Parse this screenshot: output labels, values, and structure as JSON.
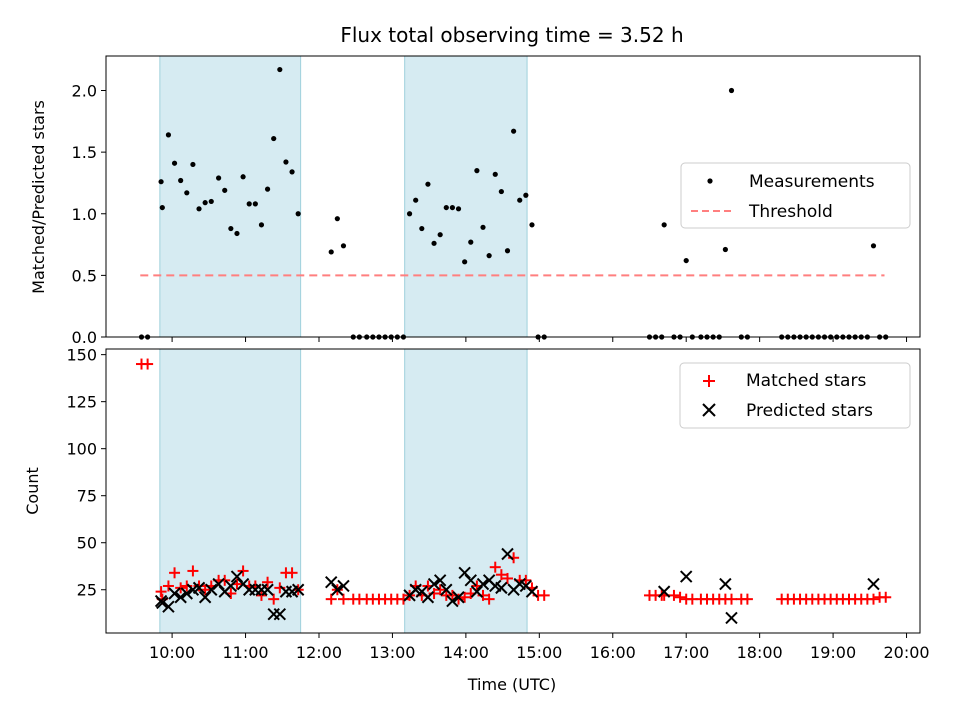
{
  "title": "Flux total observing time = 3.52 h",
  "chart_data": [
    {
      "type": "scatter",
      "ylabel": "Matched/Predicted stars",
      "ylim": [
        0,
        2.28
      ],
      "yticks": [
        0.0,
        0.5,
        1.0,
        1.5,
        2.0
      ],
      "ytick_labels": [
        "0.0",
        "0.5",
        "1.0",
        "1.5",
        "2.0"
      ],
      "legend": {
        "position": "center-right",
        "entries": [
          "Measurements",
          "Threshold"
        ]
      },
      "threshold": {
        "value": 0.5,
        "xrange": [
          "09:34",
          "19:42"
        ]
      },
      "series": [
        {
          "name": "Measurements",
          "points": [
            [
              "09:35",
              0
            ],
            [
              "09:40",
              0
            ],
            [
              "09:51",
              1.26
            ],
            [
              "09:52",
              1.05
            ],
            [
              "09:57",
              1.64
            ],
            [
              "10:02",
              1.41
            ],
            [
              "10:07",
              1.27
            ],
            [
              "10:12",
              1.17
            ],
            [
              "10:17",
              1.4
            ],
            [
              "10:22",
              1.04
            ],
            [
              "10:27",
              1.09
            ],
            [
              "10:32",
              1.1
            ],
            [
              "10:38",
              1.29
            ],
            [
              "10:43",
              1.19
            ],
            [
              "10:48",
              0.88
            ],
            [
              "10:53",
              0.84
            ],
            [
              "10:58",
              1.3
            ],
            [
              "11:03",
              1.08
            ],
            [
              "11:08",
              1.08
            ],
            [
              "11:13",
              0.91
            ],
            [
              "11:18",
              1.2
            ],
            [
              "11:23",
              1.61
            ],
            [
              "11:28",
              2.17
            ],
            [
              "11:33",
              1.42
            ],
            [
              "11:38",
              1.34
            ],
            [
              "11:43",
              1.0
            ],
            [
              "12:10",
              0.69
            ],
            [
              "12:15",
              0.96
            ],
            [
              "12:20",
              0.74
            ],
            [
              "12:28",
              0
            ],
            [
              "12:33",
              0
            ],
            [
              "12:39",
              0
            ],
            [
              "12:44",
              0
            ],
            [
              "12:49",
              0
            ],
            [
              "12:54",
              0
            ],
            [
              "12:59",
              0
            ],
            [
              "13:04",
              0
            ],
            [
              "13:09",
              0
            ],
            [
              "13:14",
              1.0
            ],
            [
              "13:19",
              1.11
            ],
            [
              "13:24",
              0.88
            ],
            [
              "13:29",
              1.24
            ],
            [
              "13:34",
              0.76
            ],
            [
              "13:39",
              0.83
            ],
            [
              "13:44",
              1.05
            ],
            [
              "13:49",
              1.05
            ],
            [
              "13:54",
              1.04
            ],
            [
              "13:59",
              0.61
            ],
            [
              "14:04",
              0.77
            ],
            [
              "14:09",
              1.35
            ],
            [
              "14:14",
              0.89
            ],
            [
              "14:19",
              0.66
            ],
            [
              "14:24",
              1.32
            ],
            [
              "14:29",
              1.18
            ],
            [
              "14:34",
              0.7
            ],
            [
              "14:39",
              1.67
            ],
            [
              "14:44",
              1.11
            ],
            [
              "14:49",
              1.15
            ],
            [
              "14:54",
              0.91
            ],
            [
              "14:59",
              0
            ],
            [
              "15:04",
              0
            ],
            [
              "16:30",
              0
            ],
            [
              "16:35",
              0
            ],
            [
              "16:40",
              0
            ],
            [
              "16:42",
              0.91
            ],
            [
              "16:50",
              0
            ],
            [
              "16:55",
              0
            ],
            [
              "17:00",
              0.62
            ],
            [
              "17:05",
              0
            ],
            [
              "17:12",
              0
            ],
            [
              "17:17",
              0
            ],
            [
              "17:22",
              0
            ],
            [
              "17:27",
              0
            ],
            [
              "17:32",
              0.71
            ],
            [
              "17:37",
              2.0
            ],
            [
              "17:45",
              0
            ],
            [
              "17:50",
              0
            ],
            [
              "18:18",
              0
            ],
            [
              "18:23",
              0
            ],
            [
              "18:28",
              0
            ],
            [
              "18:33",
              0
            ],
            [
              "18:38",
              0
            ],
            [
              "18:43",
              0
            ],
            [
              "18:48",
              0
            ],
            [
              "18:53",
              0
            ],
            [
              "18:58",
              0
            ],
            [
              "19:03",
              0
            ],
            [
              "19:08",
              0
            ],
            [
              "19:13",
              0
            ],
            [
              "19:18",
              0
            ],
            [
              "19:23",
              0
            ],
            [
              "19:28",
              0
            ],
            [
              "19:33",
              0.74
            ],
            [
              "19:38",
              0
            ],
            [
              "19:43",
              0
            ]
          ]
        }
      ]
    },
    {
      "type": "scatter",
      "xlabel": "Time (UTC)",
      "ylabel": "Count",
      "ylim": [
        2,
        153
      ],
      "yticks": [
        25,
        50,
        75,
        100,
        125,
        150
      ],
      "ytick_labels": [
        "25",
        "50",
        "75",
        "100",
        "125",
        "150"
      ],
      "xlim": [
        "09:06",
        "20:11"
      ],
      "xticks": [
        "10:00",
        "11:00",
        "12:00",
        "13:00",
        "14:00",
        "15:00",
        "16:00",
        "17:00",
        "18:00",
        "19:00",
        "20:00"
      ],
      "legend": {
        "position": "top-right",
        "entries": [
          "Matched stars",
          "Predicted stars"
        ]
      },
      "series": [
        {
          "name": "Matched stars",
          "color": "#ff0000",
          "points": [
            [
              "09:35",
              145
            ],
            [
              "09:40",
              145
            ],
            [
              "09:51",
              24
            ],
            [
              "09:52",
              20
            ],
            [
              "09:57",
              27
            ],
            [
              "10:02",
              34
            ],
            [
              "10:07",
              26
            ],
            [
              "10:12",
              27
            ],
            [
              "10:17",
              35
            ],
            [
              "10:22",
              27
            ],
            [
              "10:27",
              25
            ],
            [
              "10:32",
              27
            ],
            [
              "10:38",
              30
            ],
            [
              "10:43",
              30
            ],
            [
              "10:48",
              23
            ],
            [
              "10:53",
              28
            ],
            [
              "10:58",
              35
            ],
            [
              "11:03",
              27
            ],
            [
              "11:08",
              27
            ],
            [
              "11:13",
              22
            ],
            [
              "11:18",
              29
            ],
            [
              "11:23",
              20
            ],
            [
              "11:28",
              26
            ],
            [
              "11:33",
              34
            ],
            [
              "11:38",
              34
            ],
            [
              "11:43",
              25
            ],
            [
              "12:10",
              20
            ],
            [
              "12:15",
              25
            ],
            [
              "12:20",
              20
            ],
            [
              "12:28",
              20
            ],
            [
              "12:33",
              20
            ],
            [
              "12:39",
              20
            ],
            [
              "12:44",
              20
            ],
            [
              "12:49",
              20
            ],
            [
              "12:54",
              20
            ],
            [
              "12:59",
              20
            ],
            [
              "13:04",
              20
            ],
            [
              "13:09",
              20
            ],
            [
              "13:14",
              22
            ],
            [
              "13:19",
              27
            ],
            [
              "13:24",
              22
            ],
            [
              "13:29",
              27
            ],
            [
              "13:34",
              23
            ],
            [
              "13:39",
              25
            ],
            [
              "13:44",
              22
            ],
            [
              "13:49",
              22
            ],
            [
              "13:54",
              20
            ],
            [
              "13:59",
              21
            ],
            [
              "14:04",
              23
            ],
            [
              "14:09",
              27
            ],
            [
              "14:14",
              22
            ],
            [
              "14:19",
              20
            ],
            [
              "14:24",
              37
            ],
            [
              "14:29",
              33
            ],
            [
              "14:34",
              31
            ],
            [
              "14:39",
              42
            ],
            [
              "14:44",
              30
            ],
            [
              "14:49",
              30
            ],
            [
              "14:54",
              26
            ],
            [
              "14:59",
              22
            ],
            [
              "15:04",
              22
            ],
            [
              "16:30",
              22
            ],
            [
              "16:35",
              22
            ],
            [
              "16:40",
              22
            ],
            [
              "16:42",
              22
            ],
            [
              "16:50",
              22
            ],
            [
              "16:55",
              21
            ],
            [
              "17:00",
              20
            ],
            [
              "17:05",
              20
            ],
            [
              "17:12",
              20
            ],
            [
              "17:17",
              20
            ],
            [
              "17:22",
              20
            ],
            [
              "17:27",
              20
            ],
            [
              "17:32",
              20
            ],
            [
              "17:37",
              20
            ],
            [
              "17:45",
              20
            ],
            [
              "17:50",
              20
            ],
            [
              "18:18",
              20
            ],
            [
              "18:23",
              20
            ],
            [
              "18:28",
              20
            ],
            [
              "18:33",
              20
            ],
            [
              "18:38",
              20
            ],
            [
              "18:43",
              20
            ],
            [
              "18:48",
              20
            ],
            [
              "18:53",
              20
            ],
            [
              "18:58",
              20
            ],
            [
              "19:03",
              20
            ],
            [
              "19:08",
              20
            ],
            [
              "19:13",
              20
            ],
            [
              "19:18",
              20
            ],
            [
              "19:23",
              20
            ],
            [
              "19:28",
              20
            ],
            [
              "19:33",
              20
            ],
            [
              "19:38",
              21
            ],
            [
              "19:43",
              21
            ]
          ]
        },
        {
          "name": "Predicted stars",
          "color": "#000000",
          "points": [
            [
              "09:51",
              19
            ],
            [
              "09:52",
              18
            ],
            [
              "09:57",
              16
            ],
            [
              "10:02",
              23
            ],
            [
              "10:07",
              21
            ],
            [
              "10:12",
              23
            ],
            [
              "10:17",
              25
            ],
            [
              "10:22",
              26
            ],
            [
              "10:27",
              21
            ],
            [
              "10:32",
              25
            ],
            [
              "10:38",
              28
            ],
            [
              "10:43",
              24
            ],
            [
              "10:48",
              27
            ],
            [
              "10:53",
              32
            ],
            [
              "10:58",
              28
            ],
            [
              "11:03",
              25
            ],
            [
              "11:08",
              25
            ],
            [
              "11:13",
              25
            ],
            [
              "11:18",
              25
            ],
            [
              "11:23",
              12
            ],
            [
              "11:28",
              12
            ],
            [
              "11:33",
              24
            ],
            [
              "11:38",
              24
            ],
            [
              "11:43",
              25
            ],
            [
              "12:10",
              29
            ],
            [
              "12:15",
              25
            ],
            [
              "12:20",
              27
            ],
            [
              "13:14",
              22
            ],
            [
              "13:19",
              25
            ],
            [
              "13:24",
              24
            ],
            [
              "13:29",
              21
            ],
            [
              "13:34",
              28
            ],
            [
              "13:39",
              30
            ],
            [
              "13:44",
              25
            ],
            [
              "13:49",
              19
            ],
            [
              "13:54",
              21
            ],
            [
              "13:59",
              34
            ],
            [
              "14:04",
              30
            ],
            [
              "14:09",
              24
            ],
            [
              "14:14",
              28
            ],
            [
              "14:19",
              30
            ],
            [
              "14:24",
              27
            ],
            [
              "14:29",
              26
            ],
            [
              "14:34",
              44
            ],
            [
              "14:39",
              25
            ],
            [
              "14:44",
              28
            ],
            [
              "14:49",
              27
            ],
            [
              "14:54",
              24
            ],
            [
              "16:42",
              24
            ],
            [
              "17:00",
              32
            ],
            [
              "17:32",
              28
            ],
            [
              "17:37",
              10
            ],
            [
              "19:33",
              28
            ]
          ]
        }
      ],
      "observing_windows": [
        [
          "09:50",
          "11:45"
        ],
        [
          "13:10",
          "14:50"
        ]
      ]
    }
  ]
}
